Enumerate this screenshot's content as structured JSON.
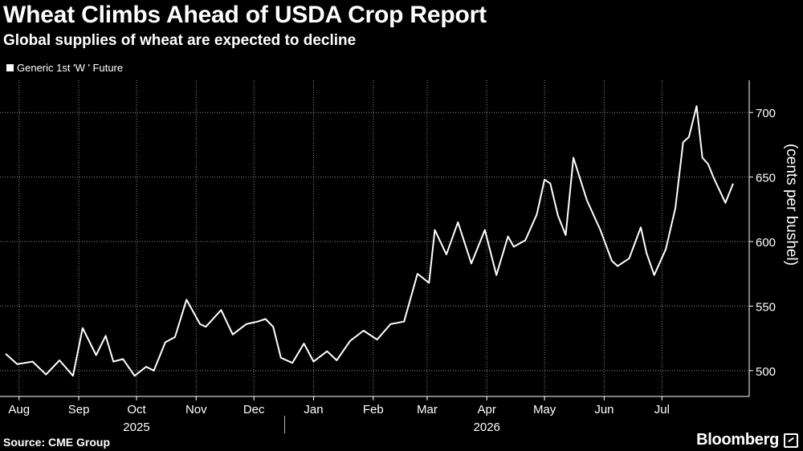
{
  "title": "Wheat Climbs Ahead of USDA Crop Report",
  "subtitle": "Global supplies of wheat are expected to decline",
  "source": "Source: CME Group",
  "brand": "Bloomberg",
  "brand_icon": "bloomberg-logo-icon",
  "colors": {
    "background": "#000000",
    "line": "#ffffff",
    "grid": "#ffffff"
  },
  "chart_data": {
    "type": "line",
    "series": [
      {
        "name": "Generic 1st 'W ' Future",
        "x": [
          "2025-07-25",
          "2025-07-31",
          "2025-08-08",
          "2025-08-15",
          "2025-08-22",
          "2025-08-29",
          "2025-09-03",
          "2025-09-10",
          "2025-09-15",
          "2025-09-19",
          "2025-09-24",
          "2025-09-30",
          "2025-10-06",
          "2025-10-10",
          "2025-10-16",
          "2025-10-21",
          "2025-10-27",
          "2025-11-03",
          "2025-11-06",
          "2025-11-14",
          "2025-11-20",
          "2025-11-27",
          "2025-12-03",
          "2025-12-07",
          "2025-12-11",
          "2025-12-15",
          "2025-12-21",
          "2025-12-27",
          "2026-01-01",
          "2026-01-08",
          "2026-01-13",
          "2026-01-20",
          "2026-01-27",
          "2026-02-03",
          "2026-02-10",
          "2026-02-17",
          "2026-02-24",
          "2026-03-02",
          "2026-03-05",
          "2026-03-11",
          "2026-03-17",
          "2026-03-24",
          "2026-03-31",
          "2026-04-06",
          "2026-04-12",
          "2026-04-15",
          "2026-04-21",
          "2026-04-27",
          "2026-05-01",
          "2026-05-04",
          "2026-05-08",
          "2026-05-12",
          "2026-05-16",
          "2026-05-23",
          "2026-05-30",
          "2026-06-05",
          "2026-06-08",
          "2026-06-14",
          "2026-06-20",
          "2026-06-23",
          "2026-06-27",
          "2026-07-03",
          "2026-07-08",
          "2026-07-12",
          "2026-07-15",
          "2026-07-19",
          "2026-07-22",
          "2026-07-25",
          "2026-07-28",
          "2026-08-03",
          "2026-08-07"
        ],
        "values": [
          513,
          505,
          507,
          497,
          508,
          496,
          533,
          512,
          527,
          507,
          509,
          496,
          503,
          500,
          522,
          526,
          555,
          536,
          534,
          547,
          528,
          536,
          538,
          540,
          534,
          510,
          506,
          521,
          507,
          515,
          508,
          523,
          531,
          524,
          536,
          538,
          575,
          568,
          609,
          590,
          615,
          583,
          609,
          574,
          604,
          596,
          601,
          621,
          648,
          645,
          620,
          605,
          665,
          632,
          609,
          585,
          581,
          587,
          611,
          591,
          574,
          594,
          626,
          677,
          681,
          705,
          665,
          660,
          649,
          630,
          645
        ]
      }
    ],
    "legend": [
      "Generic 1st 'W ' Future"
    ],
    "legend_position": "top-left",
    "ylabel": "(cents per bushel)",
    "yticks": [
      500,
      550,
      600,
      650,
      700
    ],
    "ylim": [
      480,
      725
    ],
    "y_axis_side": "right",
    "xlim": [
      "2025-07-25",
      "2026-08-12"
    ],
    "xticks": [
      {
        "date": "2025-08-01",
        "label": "Aug"
      },
      {
        "date": "2025-09-01",
        "label": "Sep"
      },
      {
        "date": "2025-10-01",
        "label": "Oct"
      },
      {
        "date": "2025-11-01",
        "label": "Nov"
      },
      {
        "date": "2025-12-01",
        "label": "Dec"
      },
      {
        "date": "2026-01-01",
        "label": "Jan"
      },
      {
        "date": "2026-02-01",
        "label": "Feb"
      },
      {
        "date": "2026-03-01",
        "label": "Mar"
      },
      {
        "date": "2026-04-01",
        "label": "Apr"
      },
      {
        "date": "2026-05-01",
        "label": "May"
      },
      {
        "date": "2026-06-01",
        "label": "Jun"
      },
      {
        "date": "2026-07-01",
        "label": "Jul"
      }
    ],
    "year_labels": [
      {
        "date": "2025-10-01",
        "label": "2025"
      },
      {
        "date": "2026-04-01",
        "label": "2026"
      }
    ],
    "year_divider": "2026-01-01",
    "grid": "dotted"
  }
}
